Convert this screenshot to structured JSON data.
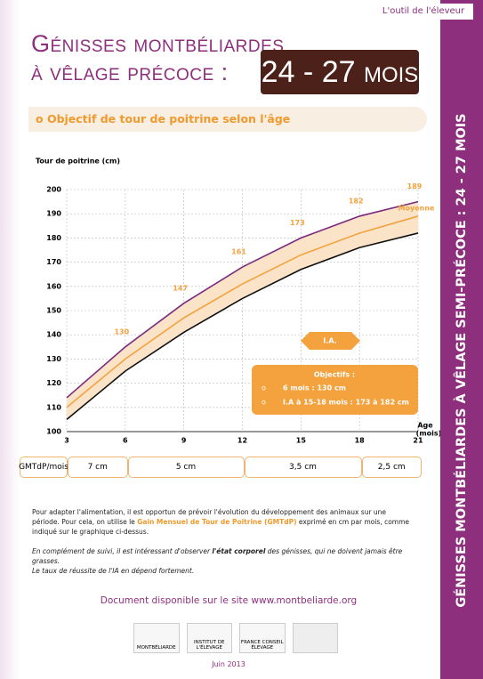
{
  "header": {
    "tag": "L'outil de l'éleveur",
    "title_line1": "Génisses montbéliardes",
    "title_line2": "à vêlage précoce :",
    "badge": "24 - 27 mois",
    "side_title": "GÉNISSES MONTBÉLIARDES À VÊLAGE SEMI-PRÉCOCE : 24 - 27 MOIS",
    "section": "o  Objectif de tour de poitrine selon l'âge"
  },
  "chart_data": {
    "type": "line",
    "ylabel": "Tour de poitrine (cm)",
    "xlabel": [
      "Age",
      "(mois)"
    ],
    "x": [
      3,
      6,
      9,
      12,
      15,
      18,
      21
    ],
    "xlim": [
      3,
      21
    ],
    "xticks": [
      3,
      6,
      9,
      12,
      15,
      18,
      21
    ],
    "ylim": [
      100,
      200
    ],
    "yticks": [
      100,
      110,
      120,
      130,
      140,
      150,
      160,
      170,
      180,
      190,
      200
    ],
    "grid": true,
    "band_color": "#fbe3c8",
    "series": [
      {
        "color": "#7b2a7e",
        "values": [
          114,
          135,
          153,
          168,
          180,
          189,
          195
        ]
      },
      {
        "name": "Moyenne",
        "color": "#f3a23e",
        "values": [
          110,
          130,
          147,
          161,
          173,
          182,
          189
        ],
        "value_labels": [
          null,
          "130",
          "147",
          "161",
          "173",
          "182",
          "189"
        ]
      },
      {
        "color": "#111111",
        "values": [
          105,
          125,
          141,
          155,
          167,
          176,
          182
        ]
      }
    ],
    "annotation": "I.A.",
    "objectives": {
      "title": "Objectifs :",
      "items": [
        "6 mois : 130 cm",
        "I.A à 15-18 mois : 173 à 182 cm"
      ]
    }
  },
  "gain_table": {
    "label": "GMTdP/mois",
    "cells": [
      "7 cm",
      "5 cm",
      "3,5 cm",
      "2,5 cm"
    ]
  },
  "text": {
    "p1_a": "Pour adapter l'alimentation, il est opportun de prévoir l'évolution du développement des animaux sur une période. Pour cela, on utilise le ",
    "p1_b": "Gain Mensuel de Tour de Poitrine (GMTdP)",
    "p1_c": " exprimé en cm par mois, comme indiqué sur le graphique ci-dessus.",
    "p2_a": "En complément de suivi, il est intéressant d'observer ",
    "p2_b": "l'état corporel",
    "p2_c": " des génisses, qui ne doivent jamais être grasses.",
    "p3": "Le taux de réussite de l'IA en dépend fortement."
  },
  "footer": {
    "site": "Document disponible sur le site www.montbeliarde.org",
    "logos": [
      "MONTBÉLIARDE",
      "INSTITUT DE L'ÉLEVAGE",
      "FRANCE CONSEIL ÉLEVAGE"
    ],
    "date": "Juin 2013"
  }
}
